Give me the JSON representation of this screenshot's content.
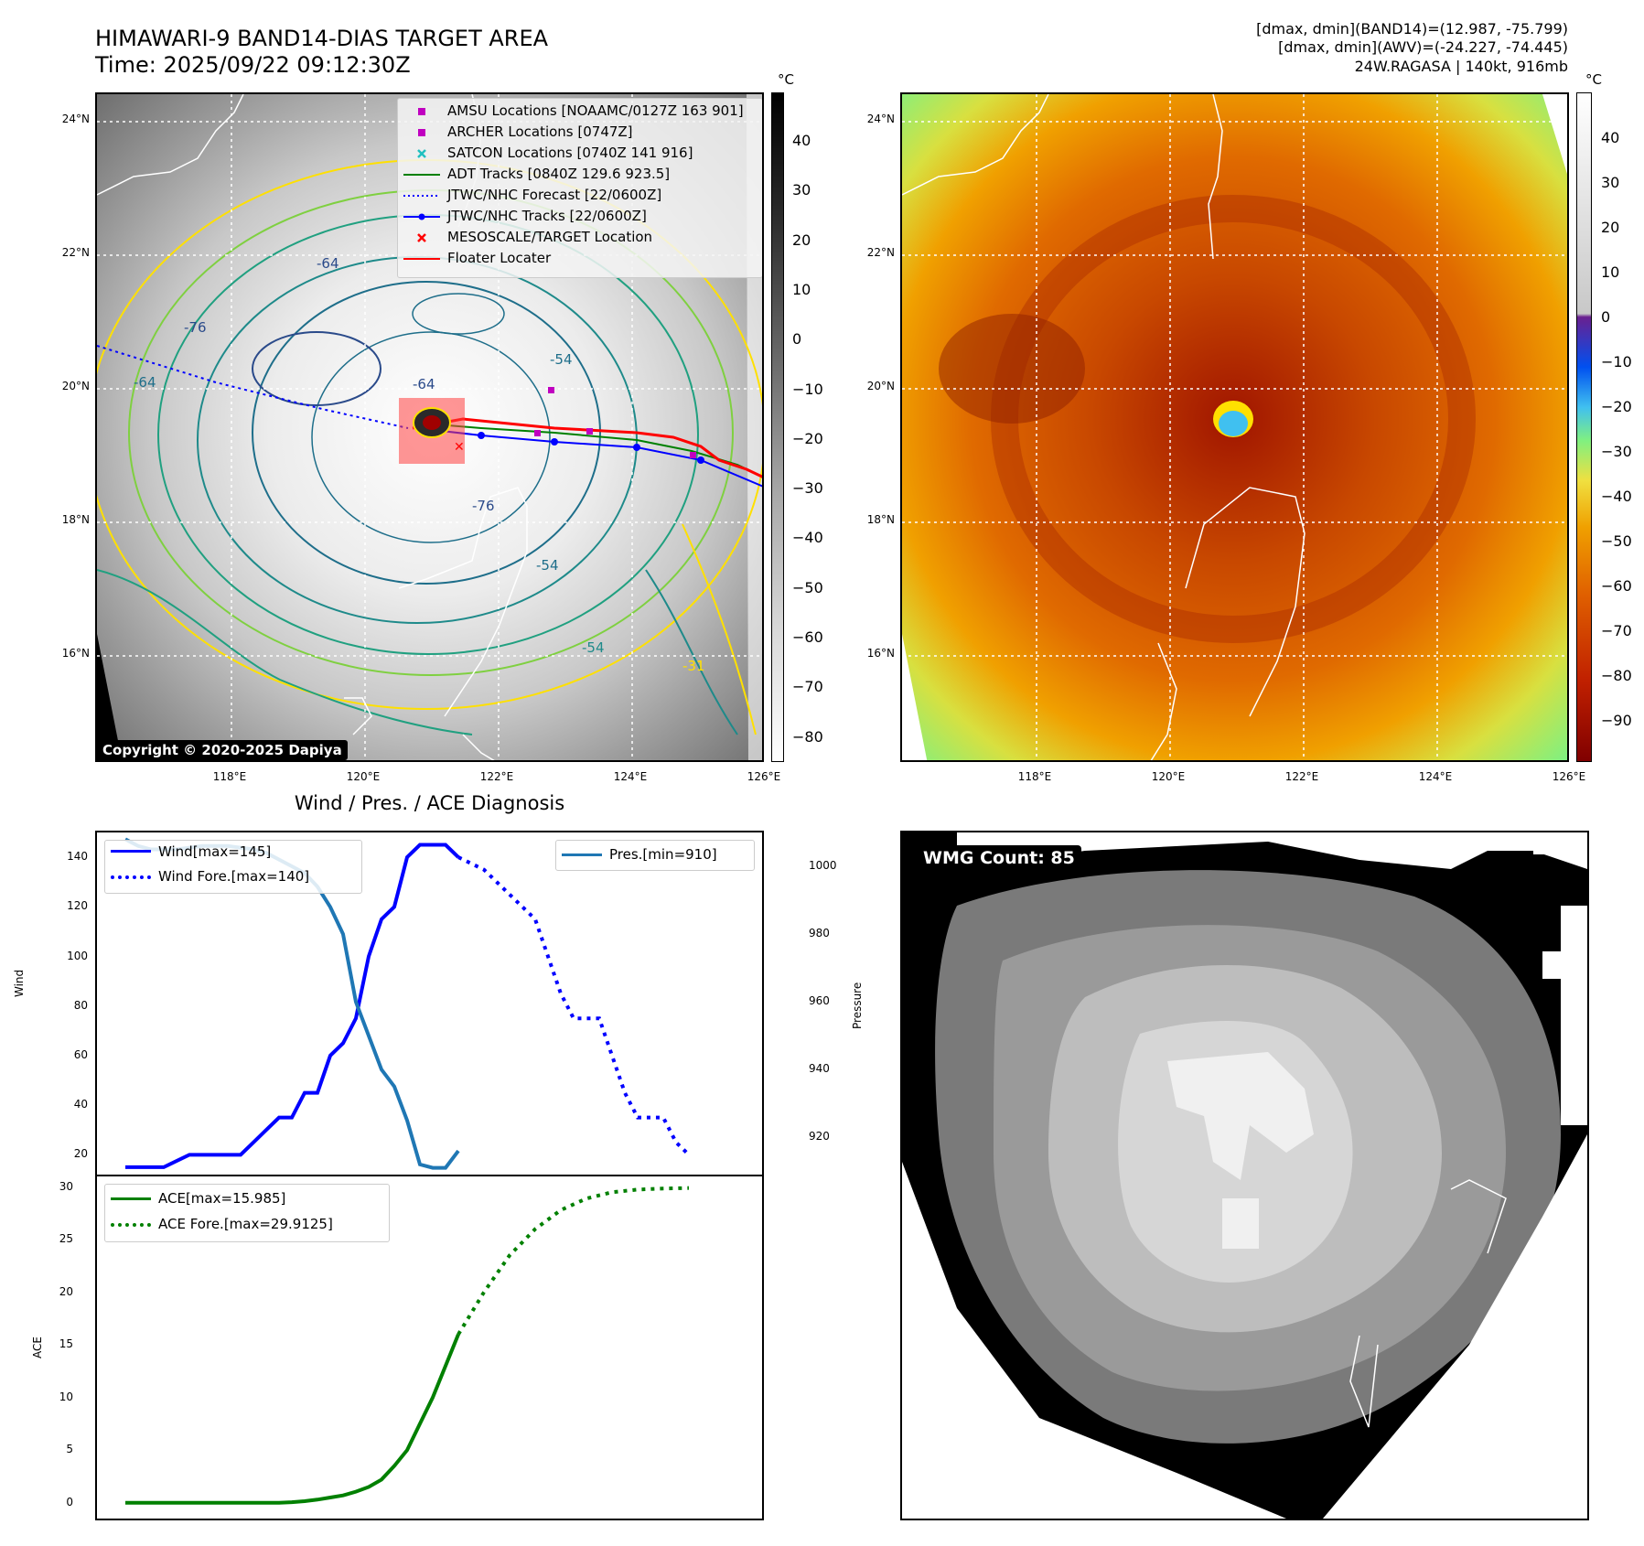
{
  "header": {
    "title_line1": "HIMAWARI-9 BAND14-DIAS TARGET AREA",
    "title_line2": "Time: 2025/09/22 09:12:30Z",
    "right_line1": "[dmax, dmin](BAND14)=(12.987, -75.799)",
    "right_line2": "[dmax, dmin](AWV)=(-24.227, -74.445)",
    "right_line3": "24W.RAGASA | 140kt, 916mb"
  },
  "map": {
    "lat_labels": [
      "24°N",
      "22°N",
      "20°N",
      "18°N",
      "16°N"
    ],
    "lon_labels": [
      "118°E",
      "120°E",
      "122°E",
      "124°E",
      "126°E"
    ],
    "unit": "°C",
    "copyright": "Copyright © 2020-2025 Dapiya",
    "contour_labels": [
      "-64",
      "-76",
      "-64",
      "-54",
      "-31",
      "-54",
      "-54",
      "-76",
      "-64"
    ],
    "legend": [
      {
        "label": "AMSU Locations [NOAAMC/0127Z 163 901]",
        "marker": "square",
        "color": "#c000c0"
      },
      {
        "label": "ARCHER Locations [0747Z]",
        "marker": "square",
        "color": "#c000c0"
      },
      {
        "label": "SATCON Locations [0740Z 141 916]",
        "marker": "x",
        "color": "#20c0c0"
      },
      {
        "label": "ADT Tracks [0840Z 129.6 923.5]",
        "marker": "line",
        "color": "#008000"
      },
      {
        "label": "JTWC/NHC Forecast [22/0600Z]",
        "marker": "dotted",
        "color": "#0000ff"
      },
      {
        "label": "JTWC/NHC Tracks [22/0600Z]",
        "marker": "line-dot",
        "color": "#0000ff"
      },
      {
        "label": "MESOSCALE/TARGET Location",
        "marker": "x",
        "color": "#ff0000"
      },
      {
        "label": "Floater Locater",
        "marker": "line",
        "color": "#ff0000"
      }
    ],
    "gray_colorbar_ticks": [
      "40",
      "30",
      "20",
      "10",
      "0",
      "−10",
      "−20",
      "−30",
      "−40",
      "−50",
      "−60",
      "−70",
      "−80"
    ],
    "color_colorbar_ticks": [
      "40",
      "30",
      "20",
      "10",
      "0",
      "−10",
      "−20",
      "−30",
      "−40",
      "−50",
      "−60",
      "−70",
      "−80",
      "−90"
    ]
  },
  "wmg": {
    "label": "WMG Count: 85"
  },
  "chart_data": [
    {
      "type": "line",
      "title": "Wind / Pres. / ACE Diagnosis",
      "ylabel": "Wind",
      "ylabel2": "Pressure",
      "ylim": [
        12,
        150
      ],
      "ylim2": [
        909,
        1010
      ],
      "y_ticks": [
        "140",
        "120",
        "100",
        "80",
        "60",
        "40",
        "20"
      ],
      "y2_ticks": [
        "1000",
        "980",
        "960",
        "940",
        "920"
      ],
      "series": [
        {
          "name": "Wind[max=145]",
          "color": "#0000ff",
          "style": "solid",
          "x": [
            0,
            2,
            3,
            5,
            6,
            7,
            8,
            9,
            10,
            11,
            12,
            13,
            14,
            15,
            16,
            17,
            18,
            19,
            20,
            21,
            22,
            23,
            24,
            25,
            26
          ],
          "values": [
            15,
            15,
            15,
            20,
            20,
            20,
            20,
            20,
            25,
            30,
            35,
            35,
            45,
            45,
            60,
            65,
            75,
            100,
            115,
            120,
            140,
            145,
            145,
            145,
            140
          ]
        },
        {
          "name": "Wind Fore.[max=140]",
          "color": "#0000ff",
          "style": "dotted",
          "x": [
            26,
            28,
            30,
            32,
            33,
            34,
            35,
            36,
            37,
            38,
            39,
            40,
            41,
            42,
            43,
            44
          ],
          "values": [
            140,
            135,
            125,
            115,
            100,
            85,
            75,
            75,
            75,
            60,
            45,
            35,
            35,
            35,
            25,
            20
          ]
        },
        {
          "name": "Pres.[min=910]",
          "color": "#1f77b4",
          "style": "solid",
          "axis": "right",
          "x": [
            0,
            1,
            2,
            4,
            6,
            8,
            10,
            11,
            12,
            13,
            14,
            15,
            16,
            17,
            18,
            20,
            21,
            22,
            23,
            24,
            25,
            26
          ],
          "values": [
            1008,
            1006,
            1005,
            1005,
            1006,
            1006,
            1005,
            1004,
            1002,
            1000,
            998,
            994,
            988,
            980,
            960,
            940,
            935,
            925,
            912,
            911,
            911,
            916
          ]
        }
      ]
    },
    {
      "type": "line",
      "ylabel": "ACE",
      "ylim": [
        -1.5,
        31
      ],
      "y_ticks": [
        "30",
        "25",
        "20",
        "15",
        "10",
        "5",
        "0"
      ],
      "series": [
        {
          "name": "ACE[max=15.985]",
          "color": "#008000",
          "style": "solid",
          "x": [
            0,
            2,
            4,
            6,
            8,
            10,
            12,
            13,
            14,
            15,
            16,
            17,
            18,
            19,
            20,
            21,
            22,
            23,
            24,
            25,
            26
          ],
          "values": [
            0,
            0,
            0,
            0,
            0,
            0,
            0,
            0.05,
            0.15,
            0.3,
            0.5,
            0.7,
            1.05,
            1.5,
            2.2,
            3.5,
            5.0,
            7.5,
            10.0,
            13.0,
            16.0
          ]
        },
        {
          "name": "ACE Fore.[max=29.9125]",
          "color": "#008000",
          "style": "dotted",
          "x": [
            26,
            28,
            30,
            32,
            34,
            36,
            38,
            40,
            42,
            44
          ],
          "values": [
            16.0,
            20.0,
            23.5,
            26.0,
            27.8,
            28.9,
            29.5,
            29.75,
            29.85,
            29.9
          ]
        }
      ]
    }
  ]
}
